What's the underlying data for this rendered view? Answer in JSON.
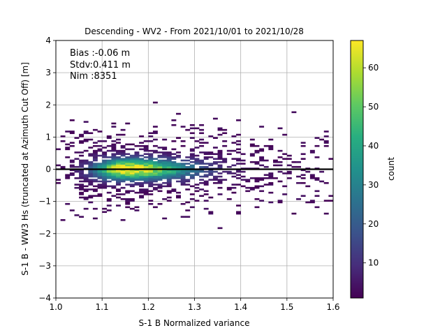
{
  "chart_data": {
    "type": "heatmap",
    "title": "Descending - WV2 - From 2021/10/01 to 2021/10/28",
    "xlabel": "S-1 B Normalized variance",
    "ylabel": "S-1 B - WW3 Hs (truncated at Azimuth Cut Off) [m]",
    "xlim": [
      1.0,
      1.6
    ],
    "ylim": [
      -4,
      4
    ],
    "xticks": [
      "1.0",
      "1.1",
      "1.2",
      "1.3",
      "1.4",
      "1.5",
      "1.6"
    ],
    "yticks": [
      "−4",
      "−3",
      "−2",
      "−1",
      "0",
      "1",
      "2",
      "3",
      "4"
    ],
    "grid": true,
    "colormap": "viridis",
    "colorbar": {
      "label": "count",
      "range": [
        1,
        67
      ],
      "ticks": [
        "10",
        "20",
        "30",
        "40",
        "50",
        "60"
      ]
    },
    "annotations": [
      "Bias :-0.06 m",
      "Stdv:0.411 m",
      "Nim :8351"
    ],
    "reference_line": {
      "y": 0,
      "color": "#000000"
    },
    "density_peak": {
      "x": 1.15,
      "y": 0.0,
      "count": 67
    }
  }
}
